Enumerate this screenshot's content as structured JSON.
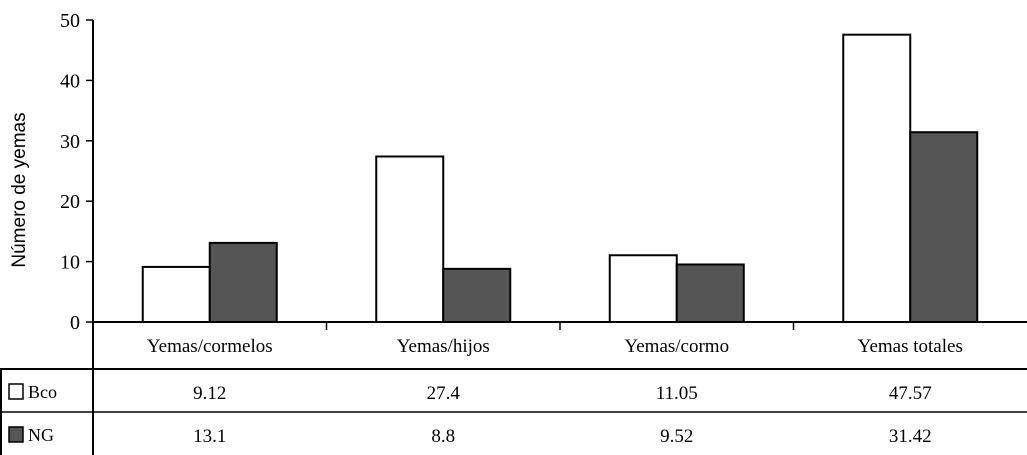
{
  "chart_data": {
    "type": "bar",
    "categories": [
      "Yemas/cormelos",
      "Yemas/hijos",
      "Yemas/cormo",
      "Yemas totales"
    ],
    "series": [
      {
        "name": "Bco",
        "values": [
          9.12,
          27.4,
          11.05,
          47.57
        ],
        "color": "#ffffff",
        "cells": [
          "9.12",
          "27.4",
          "11.05",
          "47.57"
        ]
      },
      {
        "name": "NG",
        "values": [
          13.1,
          8.8,
          9.52,
          31.42
        ],
        "color": "#555555",
        "cells": [
          "13.1",
          "8.8",
          "9.52",
          "31.42"
        ]
      }
    ],
    "title": "",
    "xlabel": "",
    "ylabel": "Número de yemas",
    "ylim": [
      0,
      50
    ],
    "yticks": [
      "0",
      "10",
      "20",
      "30",
      "40",
      "50"
    ],
    "grid": false,
    "legend": "data-table"
  }
}
